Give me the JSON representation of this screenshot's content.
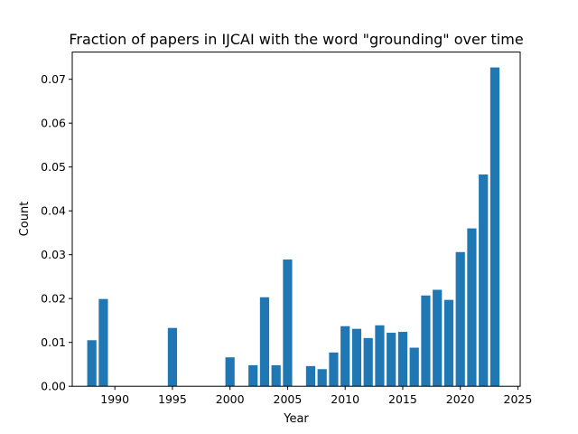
{
  "chart_data": {
    "type": "bar",
    "title": "Fraction of papers in IJCAI with the word \"grounding\" over time",
    "xlabel": "Year",
    "ylabel": "Count",
    "xlim": [
      1986.3,
      2025.2
    ],
    "ylim": [
      0,
      0.0762
    ],
    "xticks": [
      1990,
      1995,
      2000,
      2005,
      2010,
      2015,
      2020,
      2025
    ],
    "xtick_labels": [
      "1990",
      "1995",
      "2000",
      "2005",
      "2010",
      "2015",
      "2020",
      "2025"
    ],
    "yticks": [
      0,
      0.01,
      0.02,
      0.03,
      0.04,
      0.05,
      0.06,
      0.07
    ],
    "ytick_labels": [
      "0.00",
      "0.01",
      "0.02",
      "0.03",
      "0.04",
      "0.05",
      "0.06",
      "0.07"
    ],
    "bar_color": "#1f77b4",
    "grid": false,
    "x": [
      1988,
      1989,
      1995,
      2000,
      2002,
      2003,
      2004,
      2005,
      2007,
      2008,
      2009,
      2010,
      2011,
      2012,
      2013,
      2014,
      2015,
      2016,
      2017,
      2018,
      2019,
      2020,
      2021,
      2022,
      2023
    ],
    "values": [
      0.0105,
      0.0199,
      0.0133,
      0.0066,
      0.0048,
      0.0203,
      0.0048,
      0.0289,
      0.0046,
      0.0039,
      0.0077,
      0.0137,
      0.0131,
      0.011,
      0.0139,
      0.0122,
      0.0124,
      0.0088,
      0.0207,
      0.022,
      0.0197,
      0.0306,
      0.036,
      0.0483,
      0.0727
    ]
  }
}
